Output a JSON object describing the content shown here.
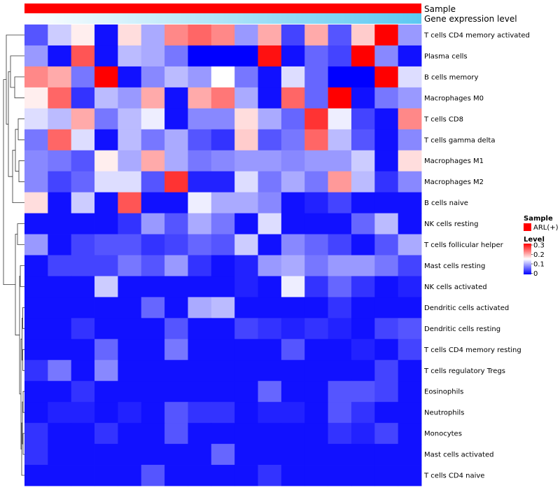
{
  "chart_data": {
    "type": "heatmap",
    "title": "",
    "annotation_tracks": [
      {
        "name": "Sample",
        "fill": "gradient",
        "colors": [
          "#ff0000"
        ]
      },
      {
        "name": "Gene expression level",
        "fill": "gradient",
        "colors": [
          "#ffffff",
          "#5bc8f2"
        ]
      }
    ],
    "rows": [
      "T cells CD4 memory activated",
      "Plasma cells",
      "B cells memory",
      "Macrophages M0",
      "T cells CD8",
      "T cells gamma delta",
      "Macrophages M1",
      "Macrophages M2",
      "B cells naive",
      "NK cells resting",
      "T cells follicular helper",
      "Mast cells resting",
      "NK cells activated",
      "Dendritic cells activated",
      "Dendritic cells resting",
      "T cells CD4 memory resting",
      "T cells regulatory  Tregs",
      "Eosinophils",
      "Neutrophils",
      "Monocytes",
      "Mast cells activated",
      "T cells CD4 naive"
    ],
    "n_columns": 17,
    "values": [
      [
        0.05,
        0.12,
        0.16,
        0.01,
        0.17,
        0.1,
        0.22,
        0.24,
        0.22,
        0.09,
        0.2,
        0.04,
        0.2,
        0.05,
        0.18,
        0.3,
        0.09
      ],
      [
        0.09,
        0.01,
        0.25,
        0.01,
        0.11,
        0.1,
        0.07,
        0.0,
        0.0,
        0.0,
        0.29,
        0.01,
        0.06,
        0.04,
        0.3,
        0.08,
        0.01
      ],
      [
        0.22,
        0.2,
        0.07,
        0.3,
        0.01,
        0.08,
        0.11,
        0.09,
        0.15,
        0.07,
        0.01,
        0.13,
        0.06,
        0.0,
        0.0,
        0.3,
        0.13
      ],
      [
        0.16,
        0.24,
        0.03,
        0.11,
        0.09,
        0.2,
        0.01,
        0.2,
        0.23,
        0.1,
        0.01,
        0.24,
        0.06,
        0.3,
        0.01,
        0.07,
        0.09
      ],
      [
        0.13,
        0.11,
        0.2,
        0.07,
        0.11,
        0.14,
        0.01,
        0.08,
        0.08,
        0.17,
        0.1,
        0.06,
        0.27,
        0.14,
        0.04,
        0.01,
        0.22
      ],
      [
        0.07,
        0.24,
        0.13,
        0.01,
        0.11,
        0.07,
        0.1,
        0.05,
        0.03,
        0.18,
        0.05,
        0.07,
        0.24,
        0.11,
        0.05,
        0.01,
        0.08
      ],
      [
        0.08,
        0.07,
        0.05,
        0.16,
        0.1,
        0.2,
        0.1,
        0.07,
        0.08,
        0.09,
        0.09,
        0.08,
        0.09,
        0.09,
        0.12,
        0.01,
        0.17
      ],
      [
        0.08,
        0.04,
        0.06,
        0.13,
        0.13,
        0.05,
        0.27,
        0.02,
        0.02,
        0.13,
        0.07,
        0.1,
        0.07,
        0.21,
        0.11,
        0.03,
        0.08
      ],
      [
        0.17,
        0.01,
        0.12,
        0.01,
        0.25,
        0.01,
        0.01,
        0.14,
        0.1,
        0.1,
        0.08,
        0.01,
        0.02,
        0.04,
        0.01,
        0.01,
        0.01
      ],
      [
        0.01,
        0.01,
        0.01,
        0.01,
        0.03,
        0.09,
        0.05,
        0.1,
        0.07,
        0.01,
        0.13,
        0.01,
        0.01,
        0.01,
        0.06,
        0.11,
        0.01
      ],
      [
        0.09,
        0.01,
        0.04,
        0.05,
        0.05,
        0.03,
        0.04,
        0.06,
        0.05,
        0.12,
        0.01,
        0.08,
        0.06,
        0.04,
        0.01,
        0.05,
        0.1
      ],
      [
        0.01,
        0.04,
        0.04,
        0.04,
        0.07,
        0.05,
        0.09,
        0.03,
        0.01,
        0.02,
        0.09,
        0.1,
        0.07,
        0.09,
        0.09,
        0.07,
        0.04
      ],
      [
        0.01,
        0.01,
        0.01,
        0.12,
        0.01,
        0.01,
        0.01,
        0.01,
        0.01,
        0.02,
        0.01,
        0.14,
        0.03,
        0.06,
        0.03,
        0.01,
        0.02
      ],
      [
        0.01,
        0.01,
        0.01,
        0.01,
        0.01,
        0.06,
        0.01,
        0.1,
        0.11,
        0.01,
        0.01,
        0.01,
        0.01,
        0.03,
        0.01,
        0.01,
        0.01
      ],
      [
        0.01,
        0.01,
        0.03,
        0.01,
        0.01,
        0.01,
        0.05,
        0.01,
        0.01,
        0.04,
        0.03,
        0.02,
        0.03,
        0.02,
        0.01,
        0.04,
        0.05
      ],
      [
        0.01,
        0.01,
        0.01,
        0.06,
        0.01,
        0.01,
        0.07,
        0.01,
        0.01,
        0.01,
        0.01,
        0.05,
        0.01,
        0.01,
        0.02,
        0.01,
        0.04
      ],
      [
        0.03,
        0.07,
        0.01,
        0.08,
        0.01,
        0.01,
        0.01,
        0.01,
        0.01,
        0.01,
        0.01,
        0.01,
        0.01,
        0.01,
        0.01,
        0.04,
        0.01
      ],
      [
        0.01,
        0.01,
        0.03,
        0.01,
        0.01,
        0.01,
        0.01,
        0.01,
        0.01,
        0.01,
        0.06,
        0.01,
        0.01,
        0.05,
        0.05,
        0.04,
        0.01
      ],
      [
        0.01,
        0.02,
        0.02,
        0.01,
        0.02,
        0.01,
        0.05,
        0.03,
        0.03,
        0.01,
        0.02,
        0.02,
        0.01,
        0.05,
        0.03,
        0.01,
        0.01
      ],
      [
        0.03,
        0.01,
        0.01,
        0.03,
        0.01,
        0.01,
        0.05,
        0.01,
        0.01,
        0.01,
        0.01,
        0.01,
        0.01,
        0.03,
        0.02,
        0.04,
        0.01
      ],
      [
        0.03,
        0.01,
        0.01,
        0.01,
        0.01,
        0.01,
        0.01,
        0.01,
        0.06,
        0.01,
        0.01,
        0.01,
        0.01,
        0.01,
        0.01,
        0.01,
        0.01
      ],
      [
        0.01,
        0.01,
        0.01,
        0.01,
        0.01,
        0.05,
        0.01,
        0.01,
        0.01,
        0.01,
        0.03,
        0.01,
        0.01,
        0.01,
        0.01,
        0.01,
        0.01
      ]
    ],
    "color_scale": {
      "min": 0,
      "mid": 0.15,
      "max": 0.3,
      "colors": [
        "#0000ff",
        "#ffffff",
        "#ff0000"
      ]
    },
    "legends": {
      "sample": {
        "title": "Sample",
        "entries": [
          {
            "label": "ARL(+)",
            "color": "#ff0000"
          }
        ]
      },
      "level": {
        "title": "Level",
        "ticks": [
          "0.3",
          "0.2",
          "0.1",
          "0"
        ]
      }
    },
    "row_dendrogram": "left",
    "grid": false
  }
}
